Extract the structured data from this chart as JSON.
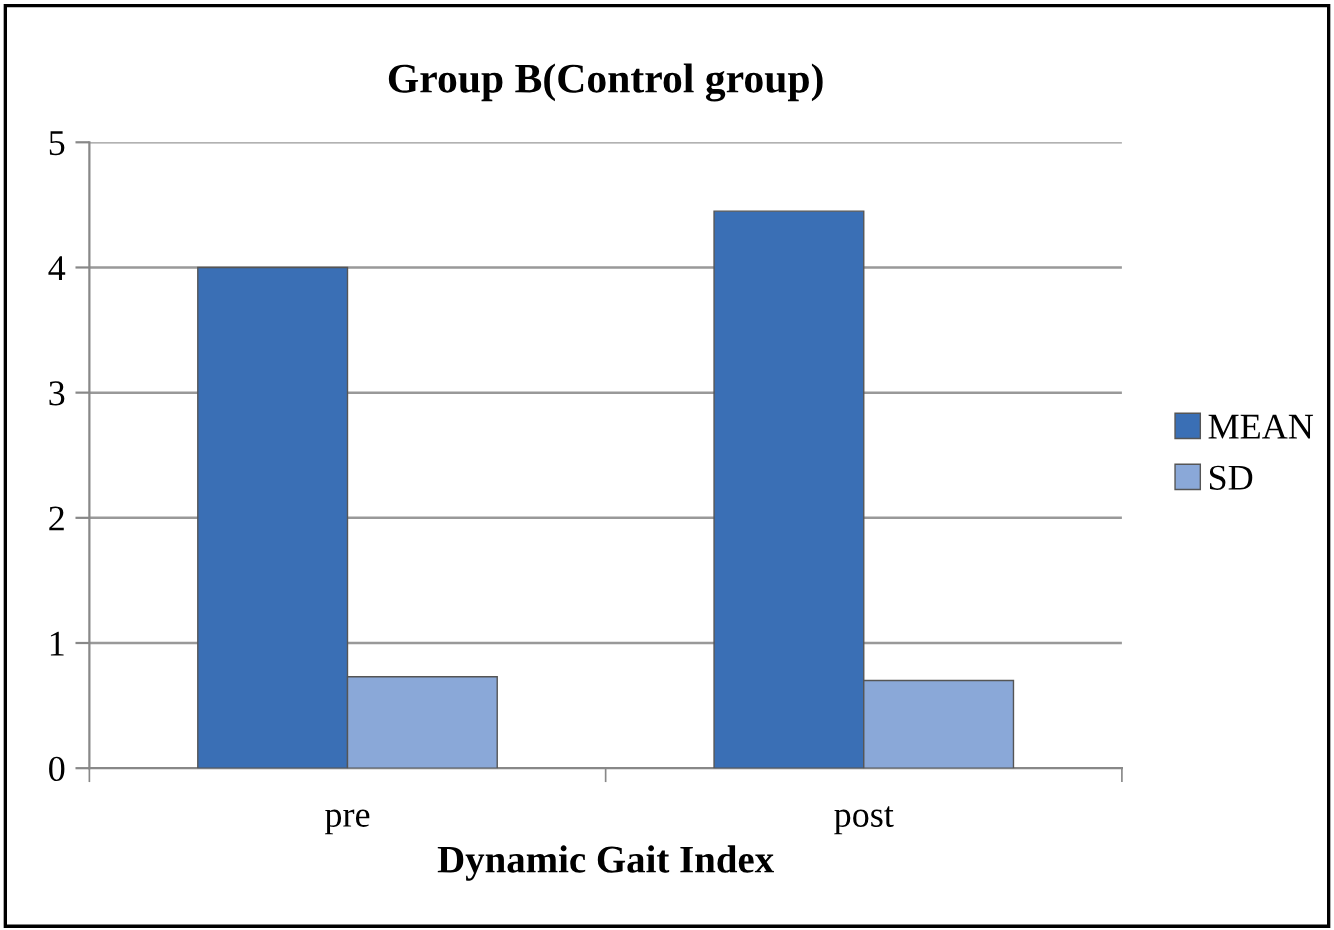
{
  "chart_data": {
    "type": "bar",
    "title": "Group B(Control group)",
    "xlabel": "Dynamic Gait Index",
    "categories": [
      "pre",
      "post"
    ],
    "series": [
      {
        "name": "MEAN",
        "color": "#3a6fb5",
        "values": [
          4.0,
          4.45
        ]
      },
      {
        "name": "SD",
        "color": "#8aa8d8",
        "values": [
          0.73,
          0.7
        ]
      }
    ],
    "ylim": [
      0,
      5
    ],
    "yticks": [
      0,
      1,
      2,
      3,
      4,
      5
    ],
    "grid": "y",
    "legend": "right"
  }
}
